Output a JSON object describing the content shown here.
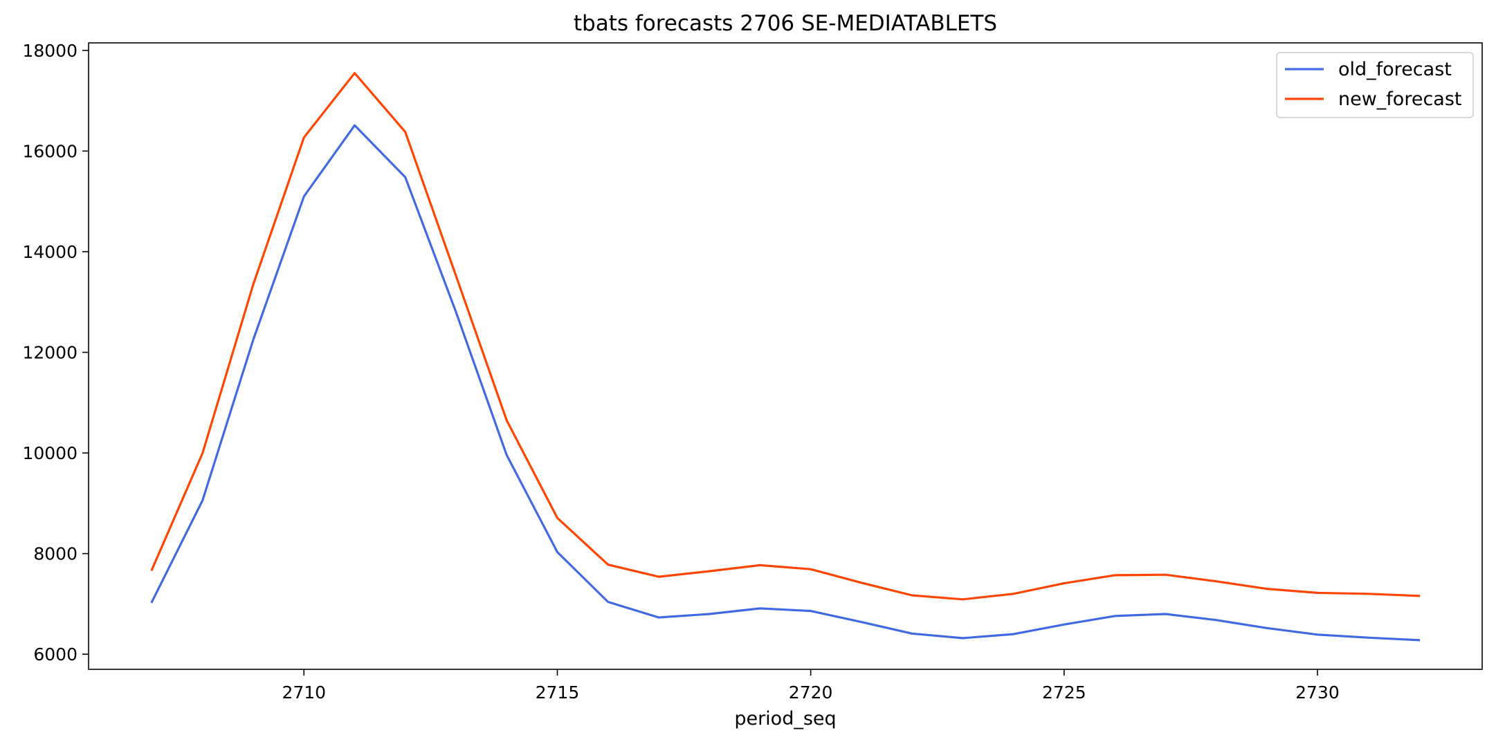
{
  "chart_data": {
    "type": "line",
    "title": "tbats forecasts 2706 SE-MEDIATABLETS",
    "xlabel": "period_seq",
    "ylabel": "",
    "xlim": [
      2705.75,
      2733.25
    ],
    "ylim": [
      5700,
      18150
    ],
    "xticks": [
      2710,
      2715,
      2720,
      2725,
      2730
    ],
    "yticks": [
      6000,
      8000,
      10000,
      12000,
      14000,
      16000,
      18000
    ],
    "grid": false,
    "legend": "top-right",
    "x": [
      2707,
      2708,
      2709,
      2710,
      2711,
      2712,
      2713,
      2714,
      2715,
      2716,
      2717,
      2718,
      2719,
      2720,
      2721,
      2722,
      2723,
      2724,
      2725,
      2726,
      2727,
      2728,
      2729,
      2730,
      2731,
      2732
    ],
    "series": [
      {
        "name": "old_forecast",
        "color": "#4169e1",
        "values": [
          7040,
          9060,
          12250,
          15100,
          16510,
          15480,
          12800,
          9960,
          8030,
          7040,
          6730,
          6800,
          6910,
          6860,
          6640,
          6410,
          6320,
          6400,
          6590,
          6760,
          6800,
          6680,
          6520,
          6390,
          6330,
          6280
        ]
      },
      {
        "name": "new_forecast",
        "color": "#ff4500",
        "values": [
          7680,
          10000,
          13350,
          16270,
          17550,
          16380,
          13520,
          10650,
          8710,
          7780,
          7540,
          7650,
          7770,
          7690,
          7420,
          7170,
          7090,
          7200,
          7410,
          7570,
          7580,
          7450,
          7300,
          7220,
          7200,
          7160
        ]
      }
    ]
  }
}
